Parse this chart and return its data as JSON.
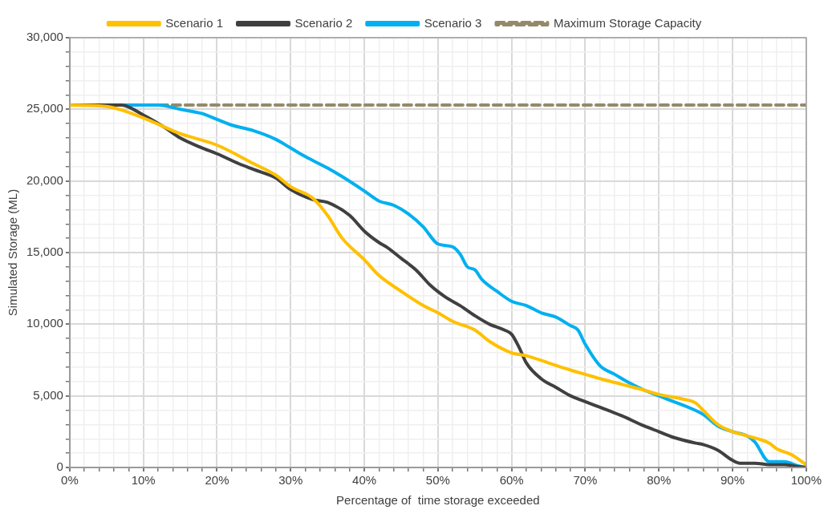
{
  "chart_data": {
    "type": "line",
    "xlabel": "Percentage of  time storage exceeded",
    "ylabel": "Simulated Storage (ML)",
    "xlim": [
      0,
      100
    ],
    "ylim": [
      0,
      30000
    ],
    "xticks": [
      {
        "value": 0,
        "label": "0%"
      },
      {
        "value": 2,
        "label": null
      },
      {
        "value": 4,
        "label": null
      },
      {
        "value": 6,
        "label": null
      },
      {
        "value": 8,
        "label": null
      },
      {
        "value": 10,
        "label": "10%"
      },
      {
        "value": 12,
        "label": null
      },
      {
        "value": 14,
        "label": null
      },
      {
        "value": 16,
        "label": null
      },
      {
        "value": 18,
        "label": null
      },
      {
        "value": 20,
        "label": "20%"
      },
      {
        "value": 22,
        "label": null
      },
      {
        "value": 24,
        "label": null
      },
      {
        "value": 26,
        "label": null
      },
      {
        "value": 28,
        "label": null
      },
      {
        "value": 30,
        "label": "30%"
      },
      {
        "value": 32,
        "label": null
      },
      {
        "value": 34,
        "label": null
      },
      {
        "value": 36,
        "label": null
      },
      {
        "value": 38,
        "label": null
      },
      {
        "value": 40,
        "label": "40%"
      },
      {
        "value": 42,
        "label": null
      },
      {
        "value": 44,
        "label": null
      },
      {
        "value": 46,
        "label": null
      },
      {
        "value": 48,
        "label": null
      },
      {
        "value": 50,
        "label": "50%"
      },
      {
        "value": 52,
        "label": null
      },
      {
        "value": 54,
        "label": null
      },
      {
        "value": 56,
        "label": null
      },
      {
        "value": 58,
        "label": null
      },
      {
        "value": 60,
        "label": "60%"
      },
      {
        "value": 62,
        "label": null
      },
      {
        "value": 64,
        "label": null
      },
      {
        "value": 66,
        "label": null
      },
      {
        "value": 68,
        "label": null
      },
      {
        "value": 70,
        "label": "70%"
      },
      {
        "value": 72,
        "label": null
      },
      {
        "value": 74,
        "label": null
      },
      {
        "value": 76,
        "label": null
      },
      {
        "value": 78,
        "label": null
      },
      {
        "value": 80,
        "label": "80%"
      },
      {
        "value": 82,
        "label": null
      },
      {
        "value": 84,
        "label": null
      },
      {
        "value": 86,
        "label": null
      },
      {
        "value": 88,
        "label": null
      },
      {
        "value": 90,
        "label": "90%"
      },
      {
        "value": 92,
        "label": null
      },
      {
        "value": 94,
        "label": null
      },
      {
        "value": 96,
        "label": null
      },
      {
        "value": 98,
        "label": null
      },
      {
        "value": 100,
        "label": "100%"
      }
    ],
    "yticks": [
      0,
      {
        "value": 1000,
        "label": null
      },
      {
        "value": 2000,
        "label": null
      },
      {
        "value": 3000,
        "label": null
      },
      {
        "value": 4000,
        "label": null
      },
      {
        "value": 5000,
        "label": "5,000"
      },
      {
        "value": 6000,
        "label": null
      },
      {
        "value": 7000,
        "label": null
      },
      {
        "value": 8000,
        "label": null
      },
      {
        "value": 9000,
        "label": null
      },
      {
        "value": 10000,
        "label": "10,000"
      },
      {
        "value": 11000,
        "label": null
      },
      {
        "value": 12000,
        "label": null
      },
      {
        "value": 13000,
        "label": null
      },
      {
        "value": 14000,
        "label": null
      },
      {
        "value": 15000,
        "label": "15,000"
      },
      {
        "value": 16000,
        "label": null
      },
      {
        "value": 17000,
        "label": null
      },
      {
        "value": 18000,
        "label": null
      },
      {
        "value": 19000,
        "label": null
      },
      {
        "value": 20000,
        "label": "20,000"
      },
      {
        "value": 21000,
        "label": null
      },
      {
        "value": 22000,
        "label": null
      },
      {
        "value": 23000,
        "label": null
      },
      {
        "value": 24000,
        "label": null
      },
      {
        "value": 25000,
        "label": "25,000"
      },
      {
        "value": 26000,
        "label": null
      },
      {
        "value": 27000,
        "label": null
      },
      {
        "value": 28000,
        "label": null
      },
      {
        "value": 29000,
        "label": null
      },
      {
        "value": 30000,
        "label": "30,000"
      }
    ],
    "grid": true,
    "legend": "top",
    "marker": "none",
    "series": [
      {
        "name": "Scenario 1",
        "color": "#ffc000",
        "x": [
          0,
          5,
          10,
          15,
          20,
          25,
          28,
          30,
          33,
          35,
          37,
          40,
          42,
          45,
          48,
          50,
          52,
          55,
          57,
          60,
          62,
          65,
          68,
          70,
          72,
          75,
          78,
          80,
          83,
          85,
          86,
          88,
          90,
          92,
          95,
          96,
          98,
          100
        ],
        "values": [
          25300,
          25200,
          24400,
          23300,
          22500,
          21200,
          20400,
          19600,
          18800,
          17600,
          16000,
          14500,
          13400,
          12300,
          11300,
          10800,
          10200,
          9600,
          8800,
          8000,
          7800,
          7300,
          6800,
          6500,
          6200,
          5800,
          5400,
          5100,
          4800,
          4500,
          4000,
          3000,
          2500,
          2200,
          1700,
          1300,
          900,
          200
        ]
      },
      {
        "name": "Scenario 2",
        "color": "#404040",
        "x": [
          0,
          7,
          10,
          13,
          15,
          18,
          20,
          23,
          25,
          28,
          30,
          33,
          35,
          38,
          40,
          42,
          43,
          45,
          47,
          49,
          51,
          53,
          55,
          57,
          59,
          60,
          61,
          62,
          64,
          66,
          68,
          70,
          72,
          75,
          78,
          80,
          82,
          85,
          86,
          88,
          90,
          91,
          93,
          95,
          97,
          99,
          100
        ],
        "values": [
          25300,
          25300,
          24600,
          23700,
          23000,
          22300,
          21900,
          21200,
          20800,
          20200,
          19400,
          18700,
          18500,
          17600,
          16500,
          15700,
          15400,
          14600,
          13800,
          12700,
          11900,
          11300,
          10600,
          10000,
          9600,
          9300,
          8400,
          7300,
          6200,
          5600,
          5000,
          4600,
          4200,
          3600,
          2900,
          2500,
          2100,
          1700,
          1600,
          1200,
          500,
          300,
          300,
          200,
          200,
          50,
          0
        ]
      },
      {
        "name": "Scenario 3",
        "color": "#00b0f0",
        "x": [
          0,
          12,
          15,
          18,
          20,
          22,
          25,
          28,
          30,
          32,
          35,
          37,
          40,
          42,
          44,
          46,
          48,
          50,
          52,
          53,
          54,
          55,
          56,
          58,
          60,
          62,
          64,
          66,
          68,
          69,
          70,
          72,
          74,
          76,
          78,
          80,
          82,
          84,
          86,
          88,
          90,
          92,
          93,
          95,
          97,
          99,
          100
        ],
        "values": [
          25300,
          25300,
          25000,
          24700,
          24300,
          23900,
          23500,
          22900,
          22300,
          21700,
          20900,
          20300,
          19300,
          18600,
          18300,
          17700,
          16800,
          15600,
          15400,
          14900,
          14000,
          13800,
          13100,
          12300,
          11600,
          11300,
          10800,
          10500,
          9900,
          9600,
          8600,
          7100,
          6500,
          5900,
          5400,
          5000,
          4600,
          4200,
          3700,
          2900,
          2500,
          2200,
          1800,
          400,
          400,
          100,
          0
        ]
      },
      {
        "name": "Maximum Storage Capacity",
        "color": "#948a6a",
        "line_style": "dashed",
        "x": [
          0,
          100
        ],
        "values": [
          25300,
          25300
        ]
      }
    ]
  }
}
